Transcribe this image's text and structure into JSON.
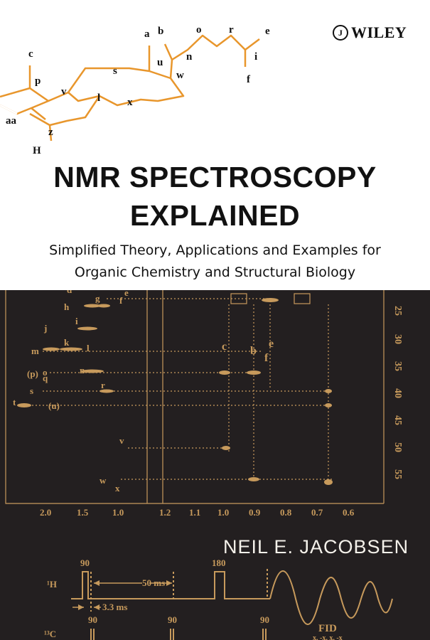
{
  "publisher": {
    "mark": "J",
    "name": "WILEY"
  },
  "title": {
    "line1": "NMR SPECTROSCOPY",
    "line2": "EXPLAINED"
  },
  "subtitle": {
    "line1": "Simplified Theory, Applications and Examples for",
    "line2": "Organic Chemistry and Structural Biology"
  },
  "author": "NEIL E. JACOBSEN",
  "colors": {
    "background": "#231f20",
    "spectrum": "#c79a5c",
    "title": "#111111",
    "author": "#f4f1ea"
  },
  "molecule_labels": [
    {
      "id": "a",
      "text": "a"
    },
    {
      "id": "b",
      "text": "b"
    },
    {
      "id": "o",
      "text": "o"
    },
    {
      "id": "r",
      "text": "r"
    },
    {
      "id": "e",
      "text": "e"
    },
    {
      "id": "n",
      "text": "n"
    },
    {
      "id": "i",
      "text": "i"
    },
    {
      "id": "f",
      "text": "f"
    },
    {
      "id": "c",
      "text": "c"
    },
    {
      "id": "p",
      "text": "p"
    },
    {
      "id": "s",
      "text": "s"
    },
    {
      "id": "u",
      "text": "u"
    },
    {
      "id": "w",
      "text": "w"
    },
    {
      "id": "v",
      "text": "v"
    },
    {
      "id": "l",
      "text": "l"
    },
    {
      "id": "x",
      "text": "x"
    },
    {
      "id": "aa",
      "text": "aa"
    },
    {
      "id": "z",
      "text": "z"
    },
    {
      "id": "H",
      "text": "H"
    }
  ],
  "spectrum": {
    "row_labels": [
      "d",
      "e",
      "f",
      "g",
      "h",
      "i",
      "j",
      "k",
      "l",
      "m",
      "n",
      "o",
      "(p)",
      "q",
      "r",
      "s",
      "t",
      "(u)",
      "v",
      "w",
      "x"
    ],
    "annotations": [
      "c",
      "b",
      "e",
      "f"
    ],
    "x_ticks_left": [
      "2.0",
      "1.5",
      "1.0"
    ],
    "x_ticks_right": [
      "1.2",
      "1.1",
      "1.0",
      "0.9",
      "0.8",
      "0.7",
      "0.6"
    ],
    "y_ticks": [
      "25",
      "30",
      "35",
      "40",
      "45",
      "50",
      "55"
    ]
  },
  "pulse": {
    "nucleus_1h": "¹H",
    "nucleus_13c": "¹³C",
    "pulse_labels": [
      "90",
      "180",
      "90",
      "90",
      "90"
    ],
    "delay_label": "50 ms",
    "delay_short": "3.3 ms",
    "fid_label": "FID",
    "phase_label": "x, -x, x, -x"
  }
}
